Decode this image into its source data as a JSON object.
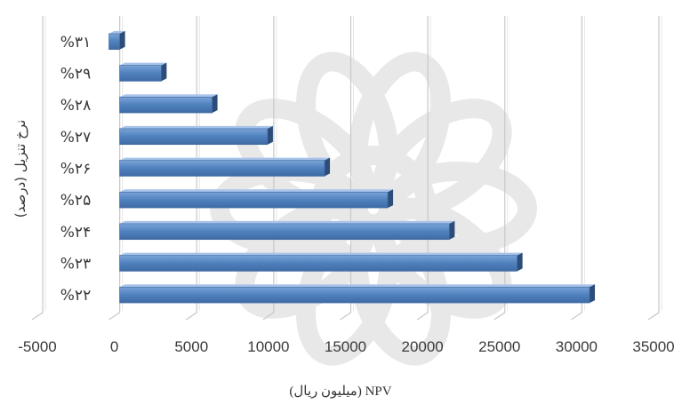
{
  "chart_data": {
    "type": "bar",
    "orientation": "horizontal",
    "three_d": true,
    "categories": [
      "%۲۲",
      "%۲۳",
      "%۲۴",
      "%۲۵",
      "%۲۶",
      "%۲۷",
      "%۲۸",
      "%۲۹",
      "%۳۱"
    ],
    "values": [
      30500,
      25800,
      21400,
      17400,
      13300,
      9600,
      6000,
      2700,
      -700
    ],
    "x_ticks": [
      "-5000",
      "0",
      "5000",
      "10000",
      "15000",
      "20000",
      "25000",
      "30000",
      "35000"
    ],
    "xlim": [
      -5000,
      35000
    ],
    "xlabel": "NPV (میلیون ریال)",
    "ylabel": "نرخ تنزیل (درصد)",
    "grid": true,
    "legend": "none",
    "colors": {
      "bar_fill": "#4f81bd",
      "bar_top": "#a9c4ea",
      "bar_side": "#2c4d7a",
      "grid": "#c8c8c8",
      "watermark": "#e6e6e6"
    }
  }
}
